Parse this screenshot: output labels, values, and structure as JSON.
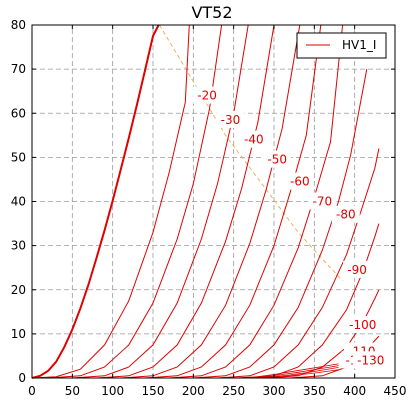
{
  "chart_data": {
    "type": "line",
    "title": "VT52",
    "xlabel": "",
    "ylabel": "",
    "xlim": [
      0,
      450
    ],
    "ylim": [
      0,
      80
    ],
    "xticks": [
      0,
      50,
      100,
      150,
      200,
      250,
      300,
      350,
      400,
      450
    ],
    "yticks": [
      0,
      10,
      20,
      30,
      40,
      50,
      60,
      70,
      80
    ],
    "grid": true,
    "legend": {
      "placement": "top-right",
      "entries": [
        "HV1_I"
      ]
    },
    "series_color": "#e00000",
    "load_line_color": "#f0b060",
    "series": [
      {
        "name": "HV1_I",
        "label": "",
        "x": [
          0,
          10,
          20,
          30,
          40,
          50,
          60,
          70,
          80,
          90,
          100,
          110,
          120,
          130,
          140,
          150,
          157
        ],
        "y": [
          0,
          0.5,
          1.6,
          3.7,
          7.0,
          11.0,
          15.8,
          21.2,
          27.2,
          33.5,
          40.2,
          47.2,
          54.4,
          61.9,
          69.6,
          77.5,
          80
        ],
        "bold": true
      },
      {
        "label": "-20",
        "x": [
          0,
          30,
          60,
          90,
          120,
          150,
          170,
          190,
          195
        ],
        "y": [
          0,
          0.3,
          2.0,
          7.5,
          17.5,
          33.0,
          46.5,
          62.5,
          80
        ]
      },
      {
        "label": "-30",
        "x": [
          20,
          60,
          90,
          120,
          150,
          180,
          200,
          220,
          235
        ],
        "y": [
          0,
          0.5,
          2.5,
          7.5,
          17.0,
          31.5,
          44.0,
          61.0,
          80
        ]
      },
      {
        "label": "-40",
        "x": [
          50,
          90,
          120,
          150,
          180,
          210,
          230,
          250,
          268
        ],
        "y": [
          0,
          0.5,
          2.5,
          7.5,
          17.0,
          31.5,
          44.0,
          60.0,
          80
        ]
      },
      {
        "label": "-50",
        "x": [
          80,
          120,
          150,
          180,
          210,
          240,
          260,
          280,
          300
        ],
        "y": [
          0,
          0.5,
          2.5,
          7.5,
          17.0,
          31.0,
          43.0,
          58.0,
          80
        ]
      },
      {
        "label": "-60",
        "x": [
          110,
          150,
          180,
          210,
          240,
          270,
          290,
          310,
          332
        ],
        "y": [
          0,
          0.5,
          2.5,
          7.5,
          16.5,
          30.5,
          42.5,
          56.5,
          80
        ]
      },
      {
        "label": "-70",
        "x": [
          140,
          180,
          210,
          240,
          270,
          300,
          320,
          340,
          358
        ],
        "y": [
          0,
          0.5,
          2.5,
          7.5,
          16.5,
          30.0,
          42.0,
          55.0,
          80
        ]
      },
      {
        "label": "-80",
        "x": [
          170,
          210,
          240,
          270,
          300,
          330,
          350,
          370,
          385
        ],
        "y": [
          0,
          0.5,
          2.5,
          7.5,
          16.5,
          29.5,
          41.0,
          53.5,
          80
        ]
      },
      {
        "label": "-90",
        "x": [
          200,
          240,
          270,
          300,
          330,
          360,
          380,
          395,
          415
        ],
        "y": [
          0,
          0.5,
          2.5,
          7.5,
          16.0,
          29.0,
          40.0,
          50.5,
          70
        ]
      },
      {
        "label": "-100",
        "x": [
          230,
          270,
          300,
          330,
          360,
          390,
          410,
          425,
          430
        ],
        "y": [
          0,
          0.5,
          2.5,
          7.5,
          16.0,
          28.0,
          39.0,
          47.5,
          52
        ]
      },
      {
        "label": "-110",
        "x": [
          260,
          300,
          330,
          360,
          390,
          410,
          425,
          430
        ],
        "y": [
          0,
          0.5,
          2.5,
          7.5,
          15.5,
          24.0,
          32.0,
          35
        ]
      },
      {
        "label": "-120",
        "x": [
          290,
          330,
          360,
          390,
          410,
          425,
          430
        ],
        "y": [
          0,
          0.5,
          2.5,
          7.0,
          12.5,
          18.0,
          20
        ]
      },
      {
        "label": "-130",
        "x": [
          320,
          360,
          390,
          410,
          425,
          430
        ],
        "y": [
          0,
          0.5,
          2.5,
          5.5,
          8.5,
          9.5
        ]
      },
      {
        "label": "-",
        "x": [
          250,
          280,
          300,
          320,
          340,
          360,
          380
        ],
        "y": [
          0,
          0.3,
          0.8,
          1.4,
          2.0,
          2.6,
          3.2
        ],
        "thin": true
      },
      {
        "label": "-",
        "x": [
          260,
          290,
          310,
          330,
          350,
          370,
          380
        ],
        "y": [
          0,
          0.3,
          0.8,
          1.3,
          1.9,
          2.5,
          2.8
        ],
        "thin": true
      },
      {
        "label": "-",
        "x": [
          270,
          300,
          320,
          340,
          360,
          380
        ],
        "y": [
          0,
          0.3,
          0.7,
          1.2,
          1.8,
          2.4
        ],
        "thin": true
      },
      {
        "label": "-",
        "x": [
          280,
          310,
          330,
          350,
          370,
          380
        ],
        "y": [
          0,
          0.3,
          0.7,
          1.1,
          1.6,
          1.9
        ],
        "thin": true
      }
    ],
    "load_line": {
      "x": [
        158,
        240,
        330,
        385
      ],
      "y": [
        80,
        55,
        33,
        22
      ]
    },
    "curve_labels": [
      {
        "text": "-20",
        "x": 217,
        "y": 64
      },
      {
        "text": "-30",
        "x": 246,
        "y": 58.5
      },
      {
        "text": "-40",
        "x": 275,
        "y": 54
      },
      {
        "text": "-50",
        "x": 304,
        "y": 49.5
      },
      {
        "text": "-60",
        "x": 332,
        "y": 44.5
      },
      {
        "text": "-70",
        "x": 360,
        "y": 40
      },
      {
        "text": "-80",
        "x": 389,
        "y": 37
      },
      {
        "text": "-90",
        "x": 403,
        "y": 24.5
      },
      {
        "text": "-100",
        "x": 410,
        "y": 12
      },
      {
        "text": "-110",
        "x": 409,
        "y": 6
      },
      {
        "text": "-1",
        "x": 396,
        "y": 4
      },
      {
        "text": "-130",
        "x": 420,
        "y": 4
      }
    ]
  }
}
